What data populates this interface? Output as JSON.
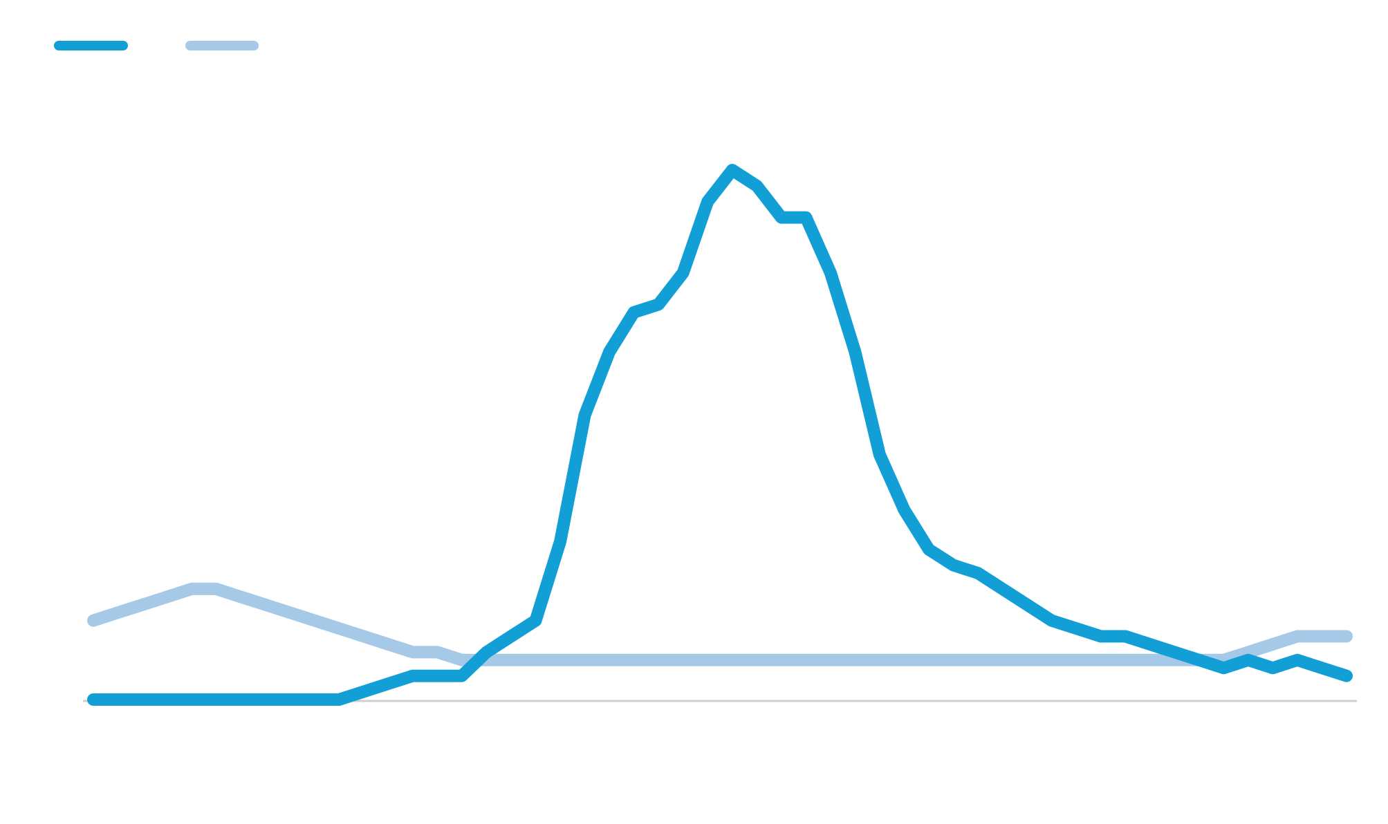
{
  "chart_data": {
    "type": "line",
    "title": "",
    "xlabel": "",
    "ylabel": "",
    "ylim": [
      0,
      100
    ],
    "grid": false,
    "legend_placement": "top-left",
    "x": [
      0,
      1,
      2,
      3,
      4,
      5,
      6,
      7,
      8,
      9,
      10,
      11,
      12,
      13,
      14,
      15,
      16,
      17,
      18,
      19,
      20,
      21,
      22,
      23,
      24,
      25,
      26,
      27,
      28,
      29,
      30,
      31,
      32,
      33,
      34,
      35,
      36,
      37,
      38,
      39,
      40,
      41,
      42,
      43,
      44,
      45,
      46,
      47,
      48,
      49,
      50,
      51
    ],
    "series": [
      {
        "color": "#129fd6",
        "values": [
          0,
          0,
          0,
          0,
          0,
          0,
          0,
          0,
          0,
          0,
          0,
          1,
          2,
          3,
          3,
          3,
          6,
          8,
          10,
          20,
          36,
          44,
          49,
          50,
          54,
          63,
          67,
          65,
          61,
          61,
          54,
          44,
          31,
          24,
          19,
          17,
          16,
          14,
          12,
          10,
          9,
          8,
          8,
          7,
          6,
          5,
          4,
          5,
          4,
          5,
          4,
          3
        ]
      },
      {
        "color": "#a5c9e7",
        "values": [
          10,
          11,
          12,
          13,
          14,
          14,
          13,
          12,
          11,
          10,
          9,
          8,
          7,
          6,
          6,
          5,
          5,
          5,
          5,
          5,
          5,
          5,
          5,
          5,
          5,
          5,
          5,
          5,
          5,
          5,
          5,
          5,
          5,
          5,
          5,
          5,
          5,
          5,
          5,
          5,
          5,
          5,
          5,
          5,
          5,
          5,
          5,
          6,
          7,
          8,
          8,
          8
        ]
      }
    ]
  }
}
